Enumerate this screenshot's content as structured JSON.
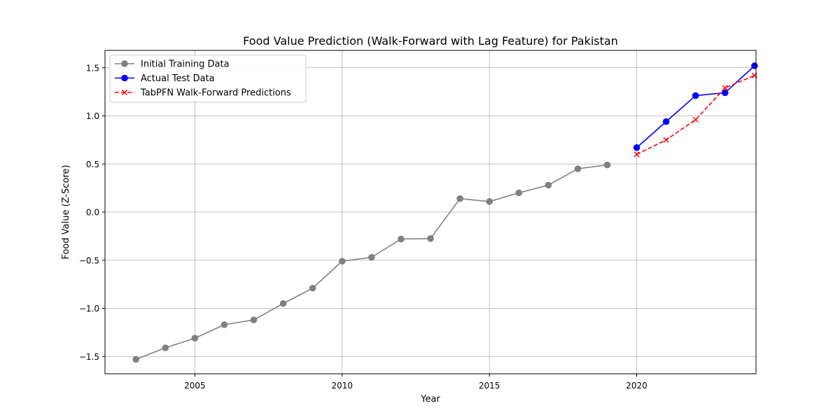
{
  "chart_data": {
    "type": "line",
    "title": "Food Value Prediction (Walk-Forward with Lag Feature) for Pakistan",
    "xlabel": "Year",
    "ylabel": "Food Value (Z-Score)",
    "xlim": [
      2001.95,
      2024.05
    ],
    "ylim": [
      -1.68,
      1.68
    ],
    "xticks": [
      2005,
      2010,
      2015,
      2020
    ],
    "yticks": [
      -1.5,
      -1.0,
      -0.5,
      0.0,
      0.5,
      1.0,
      1.5
    ],
    "ytick_labels": [
      "−1.5",
      "−1.0",
      "−0.5",
      "0.0",
      "0.5",
      "1.0",
      "1.5"
    ],
    "grid": true,
    "legend_position": "top-left",
    "series": [
      {
        "name": "Initial Training Data",
        "color": "#808080",
        "marker": "circle",
        "linestyle": "solid",
        "x": [
          2003,
          2004,
          2005,
          2006,
          2007,
          2008,
          2009,
          2010,
          2011,
          2012,
          2013,
          2014,
          2015,
          2016,
          2017,
          2018,
          2019
        ],
        "y": [
          -1.53,
          -1.41,
          -1.31,
          -1.17,
          -1.12,
          -0.95,
          -0.79,
          -0.51,
          -0.47,
          -0.28,
          -0.275,
          0.14,
          0.11,
          0.2,
          0.28,
          0.45,
          0.49
        ]
      },
      {
        "name": "Actual Test Data",
        "color": "#0000ff",
        "marker": "circle",
        "linestyle": "solid",
        "x": [
          2020,
          2021,
          2022,
          2023,
          2024
        ],
        "y": [
          0.67,
          0.94,
          1.21,
          1.24,
          1.52
        ]
      },
      {
        "name": "TabPFN Walk-Forward Predictions",
        "color": "#ff0000",
        "marker": "x",
        "linestyle": "dashed",
        "x": [
          2020,
          2021,
          2022,
          2023,
          2024
        ],
        "y": [
          0.6,
          0.75,
          0.96,
          1.29,
          1.42
        ]
      }
    ]
  }
}
